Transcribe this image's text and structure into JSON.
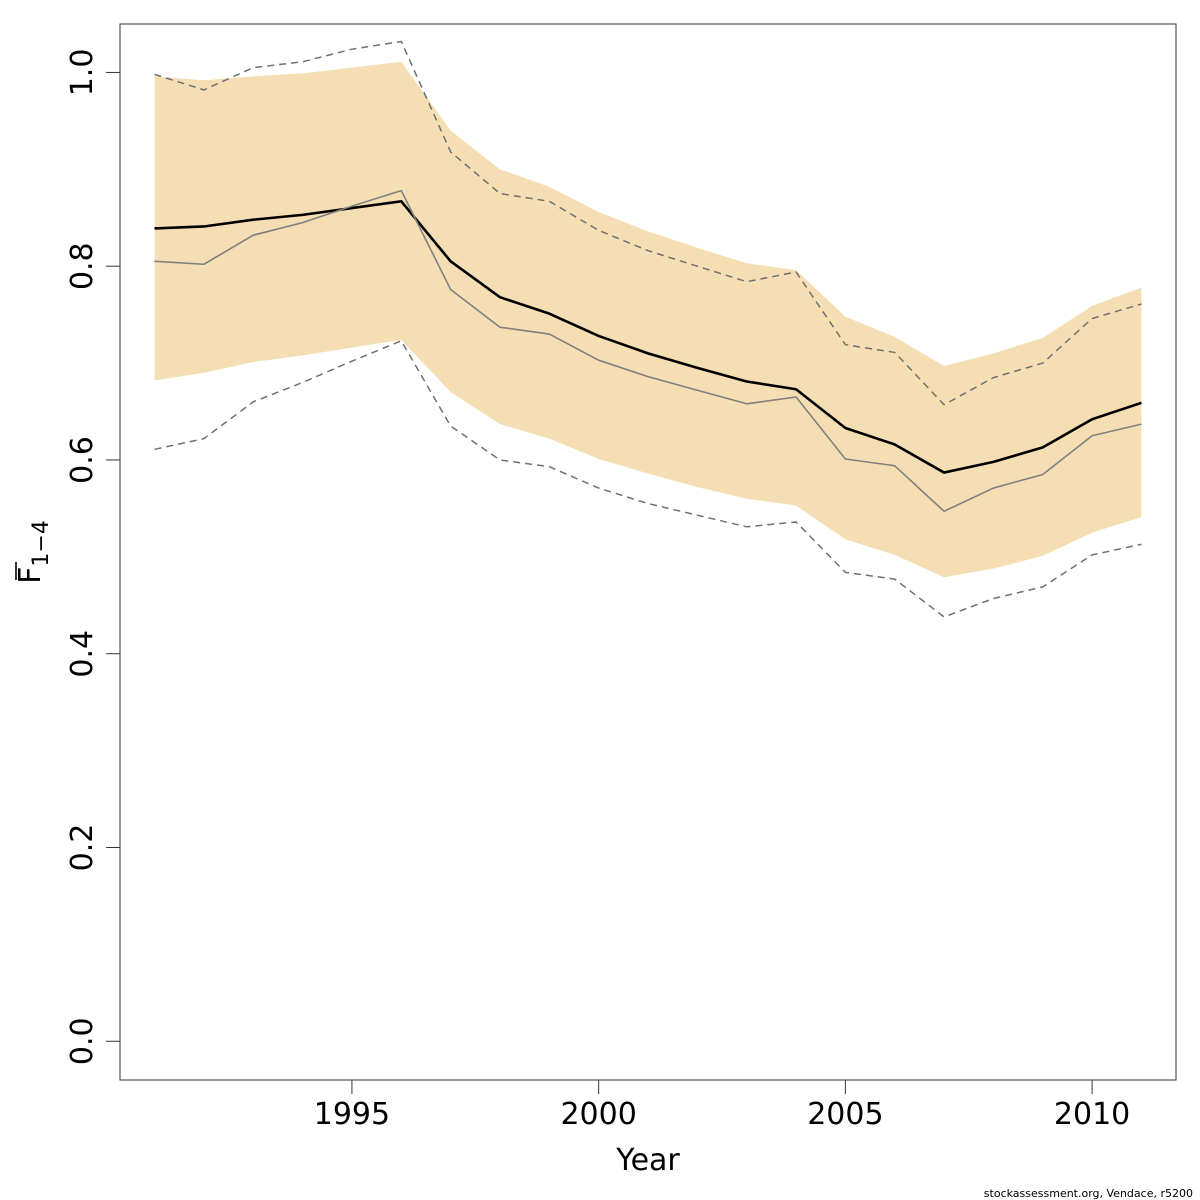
{
  "chart_data": {
    "type": "line",
    "xlabel": "Year",
    "ylabel_main": "F",
    "ylabel_sub": "1−4",
    "footer_text": "stockassessment.org, Vendace, r5200",
    "xlim": [
      1990.3,
      2011.7
    ],
    "ylim": [
      -0.04,
      1.05
    ],
    "x_ticks": [
      1995,
      2000,
      2005,
      2010
    ],
    "y_ticks": [
      0.0,
      0.2,
      0.4,
      0.6,
      0.8,
      1.0
    ],
    "y_tick_labels": [
      "0.0",
      "0.2",
      "0.4",
      "0.6",
      "0.8",
      "1.0"
    ],
    "x": [
      1991,
      1992,
      1993,
      1994,
      1995,
      1996,
      1997,
      1998,
      1999,
      2000,
      2001,
      2002,
      2003,
      2004,
      2005,
      2006,
      2007,
      2008,
      2009,
      2010,
      2011
    ],
    "band": {
      "color": "#f5deb3",
      "lower": [
        0.682,
        0.69,
        0.701,
        0.708,
        0.716,
        0.724,
        0.67,
        0.637,
        0.622,
        0.601,
        0.586,
        0.572,
        0.56,
        0.553,
        0.518,
        0.502,
        0.479,
        0.488,
        0.501,
        0.525,
        0.541
      ],
      "upper": [
        0.996,
        0.992,
        0.996,
        0.999,
        1.005,
        1.011,
        0.94,
        0.9,
        0.882,
        0.856,
        0.836,
        0.819,
        0.803,
        0.796,
        0.748,
        0.727,
        0.697,
        0.71,
        0.726,
        0.759,
        0.778
      ]
    },
    "series": [
      {
        "style": "solid-bold",
        "color": "#000000",
        "values": [
          0.839,
          0.841,
          0.848,
          0.853,
          0.86,
          0.867,
          0.805,
          0.768,
          0.751,
          0.728,
          0.71,
          0.695,
          0.681,
          0.673,
          0.633,
          0.616,
          0.587,
          0.598,
          0.613,
          0.642,
          0.659
        ]
      },
      {
        "style": "solid-thin",
        "color": "#808080",
        "values": [
          0.805,
          0.802,
          0.832,
          0.845,
          0.862,
          0.878,
          0.776,
          0.737,
          0.73,
          0.703,
          0.686,
          0.672,
          0.658,
          0.665,
          0.601,
          0.594,
          0.547,
          0.571,
          0.585,
          0.625,
          0.637
        ]
      },
      {
        "style": "dashed",
        "color": "#707070",
        "values": [
          0.998,
          0.982,
          1.005,
          1.011,
          1.024,
          1.032,
          0.918,
          0.875,
          0.867,
          0.837,
          0.816,
          0.8,
          0.784,
          0.794,
          0.719,
          0.711,
          0.657,
          0.685,
          0.7,
          0.746,
          0.761
        ]
      },
      {
        "style": "dashed",
        "color": "#707070",
        "values": [
          0.611,
          0.622,
          0.66,
          0.68,
          0.702,
          0.723,
          0.635,
          0.6,
          0.593,
          0.571,
          0.555,
          0.543,
          0.531,
          0.536,
          0.484,
          0.477,
          0.438,
          0.457,
          0.469,
          0.502,
          0.513
        ]
      }
    ]
  }
}
